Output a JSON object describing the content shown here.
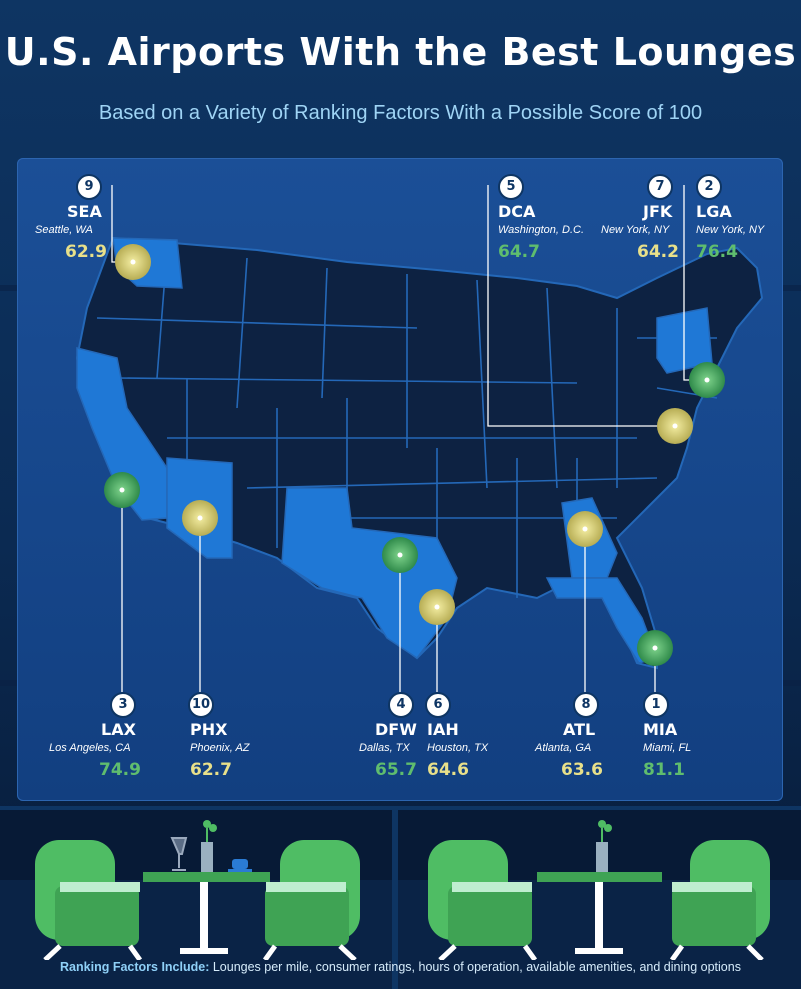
{
  "title": "U.S. Airports With the Best Lounges",
  "subtitle": "Based on a Variety of Ranking Factors With a Possible Score of 100",
  "colors": {
    "green": "#5fbd6e",
    "yellow": "#e8e08a",
    "highlight_state": "#1f78d6",
    "state": "#0d2242"
  },
  "airports": [
    {
      "rank": "1",
      "code": "MIA",
      "city": "Miami, FL",
      "score": "81.1",
      "tier": "green"
    },
    {
      "rank": "2",
      "code": "LGA",
      "city": "New York, NY",
      "score": "76.4",
      "tier": "green"
    },
    {
      "rank": "3",
      "code": "LAX",
      "city": "Los Angeles, CA",
      "score": "74.9",
      "tier": "green"
    },
    {
      "rank": "4",
      "code": "DFW",
      "city": "Dallas, TX",
      "score": "65.7",
      "tier": "green"
    },
    {
      "rank": "5",
      "code": "DCA",
      "city": "Washington, D.C.",
      "score": "64.7",
      "tier": "green"
    },
    {
      "rank": "6",
      "code": "IAH",
      "city": "Houston, TX",
      "score": "64.6",
      "tier": "yellow"
    },
    {
      "rank": "7",
      "code": "JFK",
      "city": "New York, NY",
      "score": "64.2",
      "tier": "yellow"
    },
    {
      "rank": "8",
      "code": "ATL",
      "city": "Atlanta, GA",
      "score": "63.6",
      "tier": "yellow"
    },
    {
      "rank": "9",
      "code": "SEA",
      "city": "Seattle, WA",
      "score": "62.9",
      "tier": "yellow"
    },
    {
      "rank": "10",
      "code": "PHX",
      "city": "Phoenix, AZ",
      "score": "62.7",
      "tier": "yellow"
    }
  ],
  "footer": {
    "label": "Ranking Factors Include:",
    "text": " Lounges per mile, consumer ratings, hours of operation, available amenities, and dining options"
  },
  "icons": [
    "map-marker-icon",
    "lounge-chair-icon",
    "table-icon",
    "wine-glass-icon",
    "coffee-cup-icon",
    "plant-vase-icon"
  ]
}
